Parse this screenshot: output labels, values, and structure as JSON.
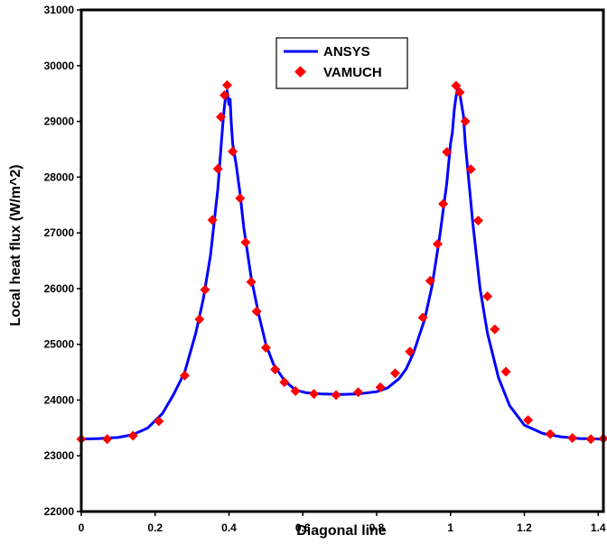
{
  "chart_data": {
    "type": "line",
    "title": "",
    "xlabel": "Diagonal line",
    "ylabel": "Local heat flux (W/m^2)",
    "xlim": [
      0,
      1.414
    ],
    "ylim": [
      22000,
      31000
    ],
    "x_ticks": [
      0,
      0.2,
      0.4,
      0.6,
      0.8,
      1,
      1.2,
      1.4
    ],
    "x_tick_labels": [
      "0",
      "0.2",
      "0.4",
      "0.6",
      "0.8",
      "1",
      "1.2",
      "1.4"
    ],
    "y_ticks": [
      22000,
      23000,
      24000,
      25000,
      26000,
      27000,
      28000,
      29000,
      30000,
      31000
    ],
    "y_tick_labels": [
      "22000",
      "23000",
      "24000",
      "25000",
      "26000",
      "27000",
      "28000",
      "29000",
      "30000",
      "31000"
    ],
    "grid": false,
    "legend_position": "top-center",
    "series": [
      {
        "name": "ANSYS",
        "style": "line",
        "color": "#0000ff",
        "x": [
          0,
          0.05,
          0.1,
          0.14,
          0.18,
          0.22,
          0.25,
          0.28,
          0.31,
          0.33,
          0.35,
          0.36,
          0.37,
          0.378,
          0.385,
          0.39,
          0.395,
          0.4,
          0.403,
          0.406,
          0.41,
          0.42,
          0.43,
          0.44,
          0.46,
          0.48,
          0.5,
          0.52,
          0.55,
          0.58,
          0.61,
          0.65,
          0.7,
          0.75,
          0.8,
          0.83,
          0.86,
          0.88,
          0.9,
          0.93,
          0.95,
          0.97,
          0.99,
          1.0,
          1.005,
          1.01,
          1.015,
          1.02,
          1.025,
          1.03,
          1.035,
          1.04,
          1.05,
          1.06,
          1.08,
          1.1,
          1.13,
          1.16,
          1.2,
          1.25,
          1.3,
          1.35,
          1.414
        ],
        "y": [
          23300,
          23310,
          23330,
          23380,
          23500,
          23760,
          24100,
          24500,
          25200,
          25800,
          26600,
          27200,
          27800,
          28500,
          29100,
          29400,
          29550,
          29300,
          29400,
          29000,
          28600,
          28200,
          27700,
          27100,
          26200,
          25550,
          25000,
          24650,
          24350,
          24180,
          24130,
          24110,
          24100,
          24110,
          24150,
          24220,
          24380,
          24560,
          24850,
          25450,
          26050,
          26900,
          27900,
          28600,
          28800,
          29200,
          29450,
          29600,
          29500,
          29300,
          29100,
          28600,
          27900,
          27200,
          26000,
          25200,
          24400,
          23900,
          23550,
          23400,
          23340,
          23310,
          23300
        ]
      },
      {
        "name": "VAMUCH",
        "style": "marker",
        "color": "#ff0000",
        "x": [
          0,
          0.07,
          0.14,
          0.21,
          0.28,
          0.32,
          0.335,
          0.355,
          0.37,
          0.378,
          0.388,
          0.395,
          0.41,
          0.43,
          0.445,
          0.46,
          0.475,
          0.5,
          0.525,
          0.55,
          0.58,
          0.63,
          0.69,
          0.75,
          0.81,
          0.85,
          0.89,
          0.925,
          0.945,
          0.965,
          0.98,
          0.99,
          1.015,
          1.025,
          1.04,
          1.055,
          1.075,
          1.1,
          1.12,
          1.15,
          1.21,
          1.27,
          1.33,
          1.38,
          1.414
        ],
        "y": [
          23300,
          23300,
          23360,
          23620,
          24440,
          25450,
          25980,
          27230,
          28150,
          29080,
          29470,
          29650,
          28460,
          27620,
          26830,
          26120,
          25590,
          24940,
          24550,
          24320,
          24160,
          24110,
          24090,
          24140,
          24230,
          24480,
          24870,
          25480,
          26140,
          26800,
          27520,
          28450,
          29640,
          29520,
          29000,
          28140,
          27220,
          25860,
          25270,
          24510,
          23640,
          23390,
          23320,
          23300,
          23310
        ]
      }
    ]
  }
}
